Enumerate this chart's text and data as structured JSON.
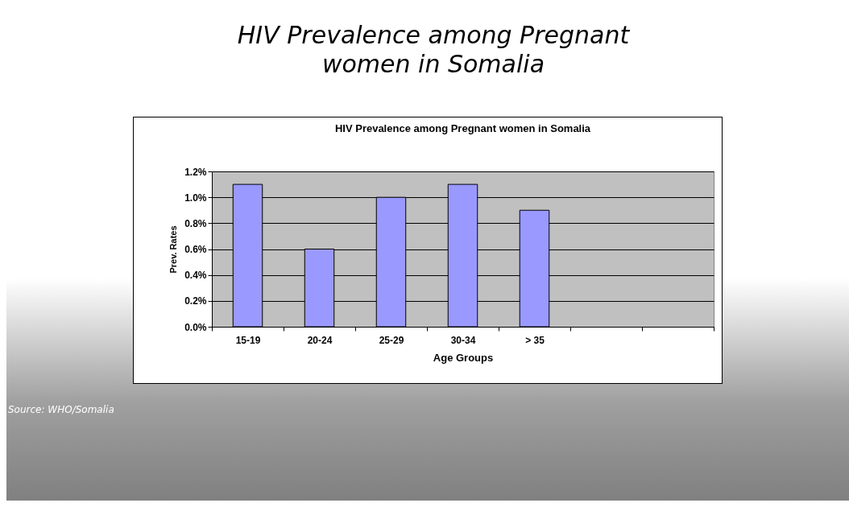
{
  "chart_data": {
    "type": "bar",
    "title": "HIV Prevalence among Pregnant women in Somalia",
    "subtitle": "HIV Prevalence among Pregnant women in Somalia",
    "xlabel": "Age Groups",
    "ylabel": "Prev. Rates",
    "categories": [
      "15-19",
      "20-24",
      "25-29",
      "30-34",
      "> 35",
      null,
      null
    ],
    "values": [
      1.1,
      0.6,
      1.0,
      1.1,
      0.9,
      null,
      null
    ],
    "color": "#9999ff",
    "ylim": [
      0,
      1.2
    ],
    "yticks": [
      {
        "value": 0,
        "label": "0.0%"
      },
      {
        "value": 0.2,
        "label": "0.2%"
      },
      {
        "value": 0.4,
        "label": "0.4%"
      },
      {
        "value": 0.6,
        "label": "0.6%"
      },
      {
        "value": 0.8,
        "label": "0.8%"
      },
      {
        "value": 1.0,
        "label": "1.0%"
      },
      {
        "value": 1.2,
        "label": "1.2%"
      }
    ],
    "grid": "y",
    "annotations": [
      "Source: WHO/Somalia"
    ]
  }
}
